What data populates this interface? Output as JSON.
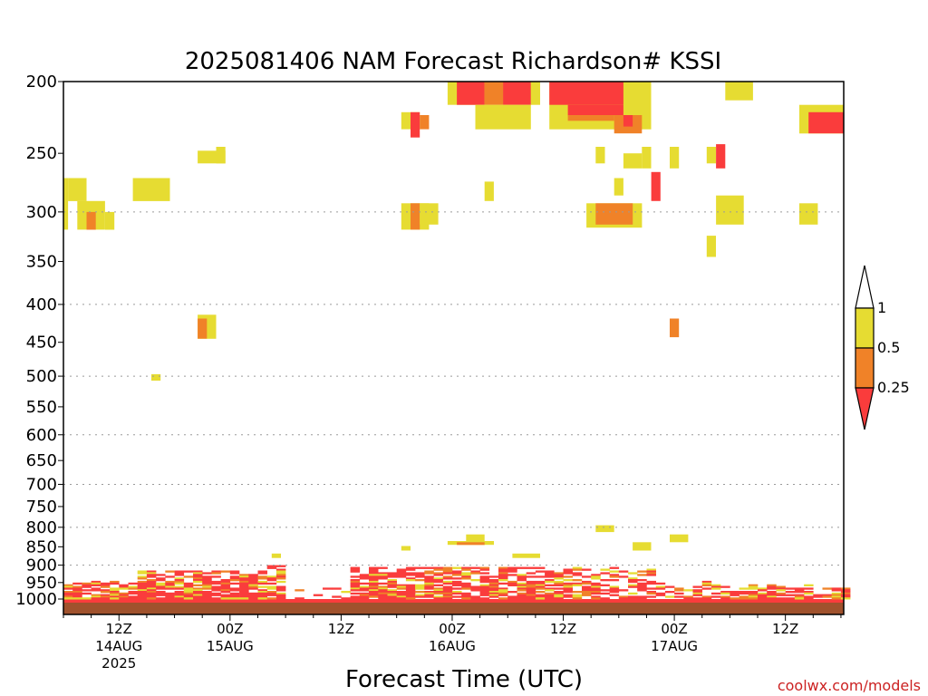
{
  "chart_data": {
    "type": "heatmap",
    "title": "2025081406 NAM Forecast Richardson# KSSI",
    "xlabel": "Forecast Time (UTC)",
    "ylabel": "",
    "y_scale": "log",
    "y_reversed": true,
    "ylim": [
      200,
      1050
    ],
    "y_ticks": [
      "200",
      "250",
      "300",
      "350",
      "400",
      "450",
      "500",
      "550",
      "600",
      "650",
      "700",
      "750",
      "800",
      "850",
      "900",
      "950",
      "1000"
    ],
    "y_tick_values": [
      200,
      250,
      300,
      350,
      400,
      450,
      500,
      550,
      600,
      650,
      700,
      750,
      800,
      850,
      900,
      950,
      1000
    ],
    "y_grid_dotted": [
      300,
      400,
      500,
      600,
      700,
      800,
      900
    ],
    "x_tick_values": [
      6,
      18,
      30,
      42,
      54,
      66,
      78
    ],
    "x_ticks": [
      {
        "hour": 6,
        "line1": "12Z",
        "line2": "14AUG",
        "line3": "2025"
      },
      {
        "hour": 18,
        "line1": "00Z",
        "line2": "15AUG",
        "line3": ""
      },
      {
        "hour": 30,
        "line1": "12Z",
        "line2": "",
        "line3": ""
      },
      {
        "hour": 42,
        "line1": "00Z",
        "line2": "16AUG",
        "line3": ""
      },
      {
        "hour": 54,
        "line1": "12Z",
        "line2": "",
        "line3": ""
      },
      {
        "hour": 66,
        "line1": "00Z",
        "line2": "17AUG",
        "line3": ""
      },
      {
        "hour": 78,
        "line1": "12Z",
        "line2": "",
        "line3": ""
      }
    ],
    "xlim": [
      0,
      84.3
    ],
    "legend": {
      "placement": "right",
      "labels": [
        "1",
        "0.5",
        "0.25"
      ],
      "bins": [
        {
          "range": "> 1",
          "color": "#ffffff"
        },
        {
          "range": "0.5 - 1",
          "color": "#e6dc32"
        },
        {
          "range": "0.25 - 0.5",
          "color": "#f08228"
        },
        {
          "range": "< 0.25",
          "color": "#fa3c3c"
        }
      ]
    },
    "colors": {
      "y": "#e6dc32",
      "o": "#f08228",
      "r": "#fa3c3c",
      "ground": "#a0522d"
    },
    "cells": [
      {
        "x0": 0,
        "x1": 0.5,
        "p0": 270,
        "p1": 317,
        "c": "y"
      },
      {
        "x0": 0.5,
        "x1": 2.5,
        "p0": 270,
        "p1": 290,
        "c": "y"
      },
      {
        "x0": 1.5,
        "x1": 2.5,
        "p0": 290,
        "p1": 317,
        "c": "y"
      },
      {
        "x0": 2.5,
        "x1": 4.5,
        "p0": 290,
        "p1": 317,
        "c": "y"
      },
      {
        "x0": 2.5,
        "x1": 3.5,
        "p0": 300,
        "p1": 317,
        "c": "o"
      },
      {
        "x0": 4.5,
        "x1": 5.5,
        "p0": 300,
        "p1": 317,
        "c": "y"
      },
      {
        "x0": 7.5,
        "x1": 11.5,
        "p0": 270,
        "p1": 290,
        "c": "y"
      },
      {
        "x0": 14.5,
        "x1": 17.5,
        "p0": 248,
        "p1": 258,
        "c": "y"
      },
      {
        "x0": 16.5,
        "x1": 17.5,
        "p0": 245,
        "p1": 258,
        "c": "y"
      },
      {
        "x0": 14.5,
        "x1": 16.5,
        "p0": 413,
        "p1": 445,
        "c": "y"
      },
      {
        "x0": 14.5,
        "x1": 15.5,
        "p0": 418,
        "p1": 445,
        "c": "o"
      },
      {
        "x0": 9.5,
        "x1": 10.5,
        "p0": 497,
        "p1": 507,
        "c": "y"
      },
      {
        "x0": 41.5,
        "x1": 51.5,
        "p0": 200,
        "p1": 215,
        "c": "y"
      },
      {
        "x0": 42.5,
        "x1": 45.5,
        "p0": 200,
        "p1": 215,
        "c": "r"
      },
      {
        "x0": 45.5,
        "x1": 47.5,
        "p0": 200,
        "p1": 215,
        "c": "o"
      },
      {
        "x0": 47.5,
        "x1": 50.5,
        "p0": 200,
        "p1": 215,
        "c": "r"
      },
      {
        "x0": 44.5,
        "x1": 50.5,
        "p0": 215,
        "p1": 232,
        "c": "y"
      },
      {
        "x0": 52.5,
        "x1": 63.5,
        "p0": 200,
        "p1": 232,
        "c": "y"
      },
      {
        "x0": 52.5,
        "x1": 60.5,
        "p0": 200,
        "p1": 215,
        "c": "r"
      },
      {
        "x0": 54.5,
        "x1": 60.5,
        "p0": 215,
        "p1": 222,
        "c": "r"
      },
      {
        "x0": 54.5,
        "x1": 59.5,
        "p0": 222,
        "p1": 226,
        "c": "o"
      },
      {
        "x0": 59.5,
        "x1": 62.5,
        "p0": 222,
        "p1": 235,
        "c": "o"
      },
      {
        "x0": 60.5,
        "x1": 61.5,
        "p0": 222,
        "p1": 230,
        "c": "r"
      },
      {
        "x0": 36.5,
        "x1": 38.5,
        "p0": 220,
        "p1": 232,
        "c": "y"
      },
      {
        "x0": 37.5,
        "x1": 38.5,
        "p0": 220,
        "p1": 238,
        "c": "r"
      },
      {
        "x0": 38.5,
        "x1": 39.5,
        "p0": 222,
        "p1": 232,
        "c": "o"
      },
      {
        "x0": 71.5,
        "x1": 74.5,
        "p0": 200,
        "p1": 212,
        "c": "y"
      },
      {
        "x0": 79.5,
        "x1": 84.3,
        "p0": 215,
        "p1": 235,
        "c": "y"
      },
      {
        "x0": 80.5,
        "x1": 84.3,
        "p0": 220,
        "p1": 235,
        "c": "r"
      },
      {
        "x0": 57.5,
        "x1": 58.5,
        "p0": 245,
        "p1": 258,
        "c": "y"
      },
      {
        "x0": 60.5,
        "x1": 62.5,
        "p0": 250,
        "p1": 262,
        "c": "y"
      },
      {
        "x0": 62.5,
        "x1": 63.5,
        "p0": 245,
        "p1": 262,
        "c": "y"
      },
      {
        "x0": 65.5,
        "x1": 66.5,
        "p0": 245,
        "p1": 262,
        "c": "y"
      },
      {
        "x0": 69.5,
        "x1": 70.5,
        "p0": 245,
        "p1": 258,
        "c": "y"
      },
      {
        "x0": 70.5,
        "x1": 71.5,
        "p0": 243,
        "p1": 262,
        "c": "r"
      },
      {
        "x0": 63.5,
        "x1": 64.5,
        "p0": 265,
        "p1": 290,
        "c": "r"
      },
      {
        "x0": 59.5,
        "x1": 60.5,
        "p0": 270,
        "p1": 285,
        "c": "y"
      },
      {
        "x0": 45.5,
        "x1": 46.5,
        "p0": 273,
        "p1": 290,
        "c": "y"
      },
      {
        "x0": 36.5,
        "x1": 39.5,
        "p0": 292,
        "p1": 317,
        "c": "y"
      },
      {
        "x0": 37.5,
        "x1": 38.5,
        "p0": 292,
        "p1": 317,
        "c": "o"
      },
      {
        "x0": 38.5,
        "x1": 40.5,
        "p0": 292,
        "p1": 312,
        "c": "y"
      },
      {
        "x0": 56.5,
        "x1": 62.5,
        "p0": 292,
        "p1": 315,
        "c": "y"
      },
      {
        "x0": 57.5,
        "x1": 61.5,
        "p0": 292,
        "p1": 312,
        "c": "o"
      },
      {
        "x0": 70.5,
        "x1": 73.5,
        "p0": 285,
        "p1": 312,
        "c": "y"
      },
      {
        "x0": 79.5,
        "x1": 81.5,
        "p0": 292,
        "p1": 312,
        "c": "y"
      },
      {
        "x0": 69.5,
        "x1": 70.5,
        "p0": 323,
        "p1": 345,
        "c": "y"
      },
      {
        "x0": 65.5,
        "x1": 66.5,
        "p0": 418,
        "p1": 443,
        "c": "o"
      },
      {
        "x0": 57.5,
        "x1": 59.5,
        "p0": 795,
        "p1": 812,
        "c": "y"
      },
      {
        "x0": 43.5,
        "x1": 45.5,
        "p0": 818,
        "p1": 835,
        "c": "y"
      },
      {
        "x0": 41.5,
        "x1": 46.5,
        "p0": 835,
        "p1": 845,
        "c": "y"
      },
      {
        "x0": 42.5,
        "x1": 45.5,
        "p0": 838,
        "p1": 845,
        "c": "o"
      },
      {
        "x0": 61.5,
        "x1": 63.5,
        "p0": 838,
        "p1": 860,
        "c": "y"
      },
      {
        "x0": 65.5,
        "x1": 67.5,
        "p0": 818,
        "p1": 838,
        "c": "y"
      },
      {
        "x0": 36.5,
        "x1": 37.5,
        "p0": 848,
        "p1": 860,
        "c": "y"
      },
      {
        "x0": 22.5,
        "x1": 23.5,
        "p0": 868,
        "p1": 880,
        "c": "y"
      },
      {
        "x0": 48.5,
        "x1": 51.5,
        "p0": 868,
        "p1": 880,
        "c": "y"
      },
      {
        "x0": 0,
        "x1": 84.3,
        "p0": 1000,
        "p1": 1018,
        "c": "r"
      }
    ],
    "boundary_layer_seed": 20250814
  }
}
